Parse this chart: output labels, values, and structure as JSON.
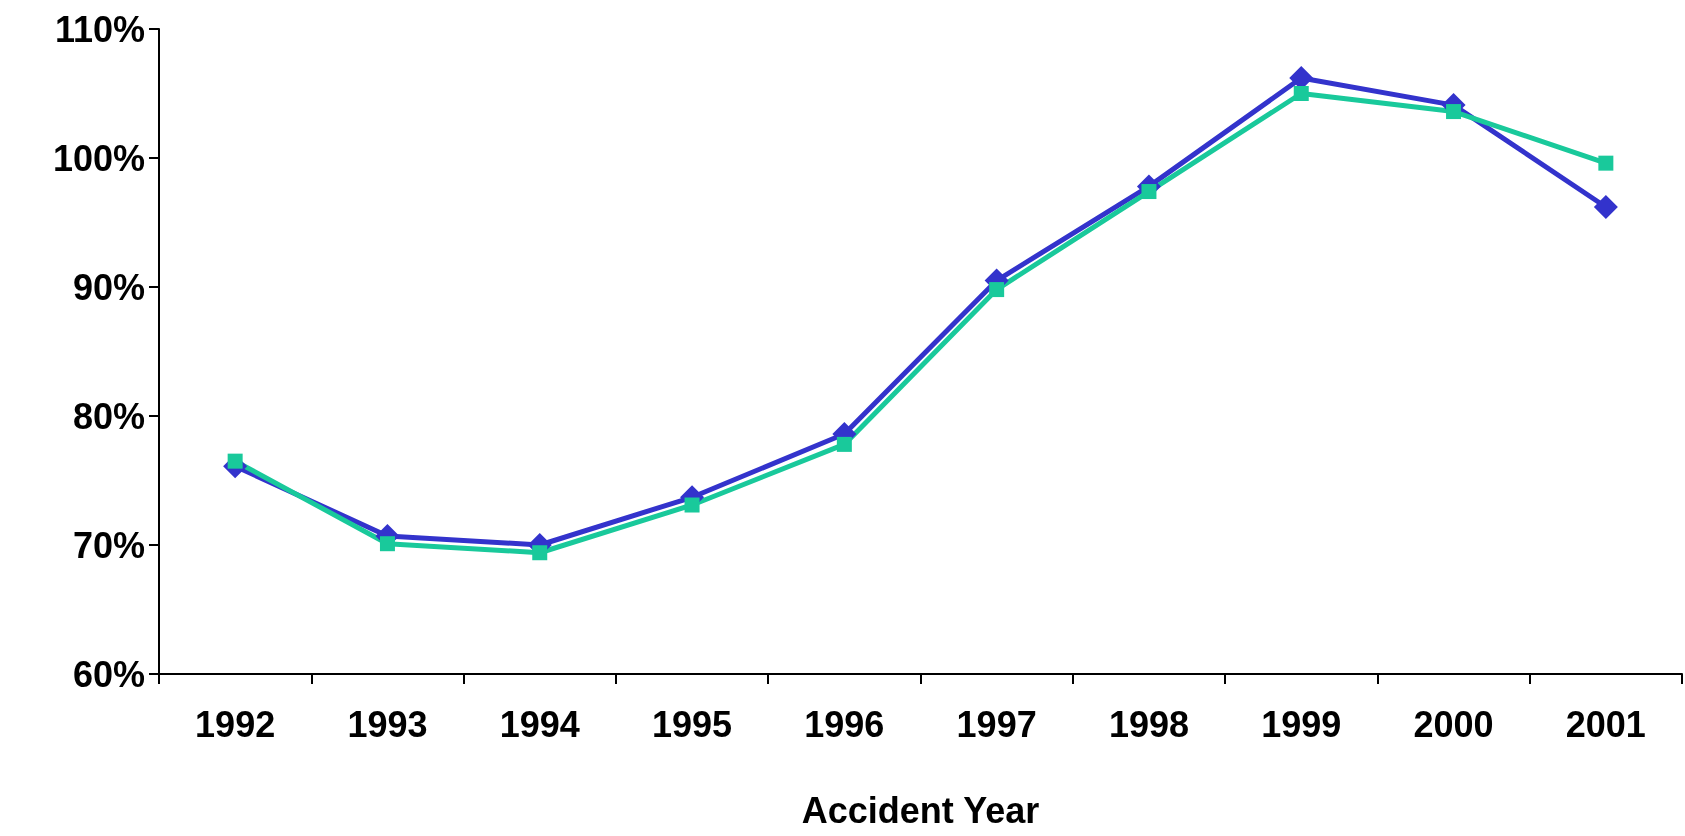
{
  "chart_data": {
    "type": "line",
    "xlabel": "Accident Year",
    "categories": [
      "1992",
      "1993",
      "1994",
      "1995",
      "1996",
      "1997",
      "1998",
      "1999",
      "2000",
      "2001"
    ],
    "series": [
      {
        "color": "#3333cc",
        "marker": "diamond",
        "values": [
          76.1,
          70.7,
          70.0,
          73.7,
          78.6,
          90.5,
          97.8,
          106.2,
          104.1,
          96.2
        ]
      },
      {
        "color": "#19c99b",
        "marker": "square",
        "values": [
          76.5,
          70.1,
          69.4,
          73.1,
          77.8,
          89.8,
          97.4,
          105.0,
          103.6,
          99.6
        ]
      }
    ],
    "ylim": [
      60,
      110
    ],
    "yticks": [
      {
        "value": 60,
        "label": "60%"
      },
      {
        "value": 70,
        "label": "70%"
      },
      {
        "value": 80,
        "label": "80%"
      },
      {
        "value": 90,
        "label": "90%"
      },
      {
        "value": 100,
        "label": "100%"
      },
      {
        "value": 110,
        "label": "110%"
      }
    ],
    "grid": false
  }
}
